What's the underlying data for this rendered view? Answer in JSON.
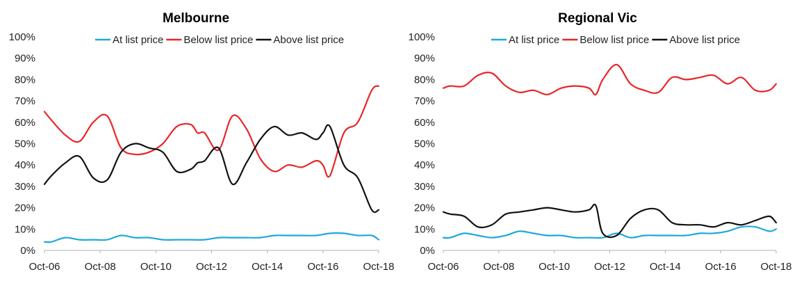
{
  "chart_data": [
    {
      "type": "line",
      "title": "Melbourne",
      "xlabel": "",
      "ylabel": "",
      "ylim": [
        0,
        100
      ],
      "yticks": [
        "0%",
        "10%",
        "20%",
        "30%",
        "40%",
        "50%",
        "60%",
        "70%",
        "80%",
        "90%",
        "100%"
      ],
      "x_tick_labels": [
        "Oct-06",
        "Oct-08",
        "Oct-10",
        "Oct-12",
        "Oct-14",
        "Oct-16",
        "Oct-18"
      ],
      "x_range": [
        2006.75,
        2018.75
      ],
      "legend_position": "top",
      "series": [
        {
          "name": "At list price",
          "color": "#1fa8dc",
          "x": [
            2006.75,
            2007.0,
            2007.5,
            2008.0,
            2008.5,
            2009.0,
            2009.5,
            2010.0,
            2010.5,
            2011.0,
            2011.5,
            2012.0,
            2012.5,
            2013.0,
            2013.5,
            2014.0,
            2014.5,
            2015.0,
            2015.5,
            2016.0,
            2016.5,
            2017.0,
            2017.5,
            2018.0,
            2018.5,
            2018.75
          ],
          "values": [
            4,
            4,
            6,
            5,
            5,
            5,
            7,
            6,
            6,
            5,
            5,
            5,
            5,
            6,
            6,
            6,
            6,
            7,
            7,
            7,
            7,
            8,
            8,
            7,
            7,
            5
          ]
        },
        {
          "name": "Below list price",
          "color": "#e8262a",
          "x": [
            2006.75,
            2007.0,
            2007.5,
            2008.0,
            2008.5,
            2009.0,
            2009.5,
            2010.0,
            2010.5,
            2011.0,
            2011.5,
            2012.0,
            2012.25,
            2012.5,
            2013.0,
            2013.5,
            2014.0,
            2014.5,
            2015.0,
            2015.5,
            2016.0,
            2016.5,
            2016.75,
            2017.0,
            2017.5,
            2018.0,
            2018.5,
            2018.75
          ],
          "values": [
            65,
            61,
            54,
            51,
            60,
            63,
            48,
            45,
            46,
            50,
            58,
            59,
            55,
            55,
            47,
            63,
            57,
            43,
            37,
            40,
            39,
            42,
            40,
            35,
            55,
            60,
            75,
            77
          ]
        },
        {
          "name": "Above list price",
          "color": "#111111",
          "x": [
            2006.75,
            2007.0,
            2007.5,
            2008.0,
            2008.5,
            2009.0,
            2009.5,
            2010.0,
            2010.5,
            2011.0,
            2011.5,
            2012.0,
            2012.25,
            2012.5,
            2013.0,
            2013.5,
            2014.0,
            2014.5,
            2015.0,
            2015.5,
            2016.0,
            2016.5,
            2016.75,
            2017.0,
            2017.5,
            2018.0,
            2018.5,
            2018.75
          ],
          "values": [
            31,
            35,
            41,
            44,
            34,
            33,
            46,
            50,
            48,
            46,
            37,
            38,
            41,
            42,
            48,
            31,
            41,
            52,
            58,
            54,
            55,
            52,
            55,
            58,
            40,
            34,
            19,
            19
          ]
        }
      ]
    },
    {
      "type": "line",
      "title": "Regional Vic",
      "xlabel": "",
      "ylabel": "",
      "ylim": [
        0,
        100
      ],
      "yticks": [
        "0%",
        "10%",
        "20%",
        "30%",
        "40%",
        "50%",
        "60%",
        "70%",
        "80%",
        "90%",
        "100%"
      ],
      "x_tick_labels": [
        "Oct-06",
        "Oct-08",
        "Oct-10",
        "Oct-12",
        "Oct-14",
        "Oct-16",
        "Oct-18"
      ],
      "x_range": [
        2006.75,
        2018.75
      ],
      "legend_position": "top",
      "series": [
        {
          "name": "At list price",
          "color": "#1fa8dc",
          "x": [
            2006.75,
            2007.0,
            2007.5,
            2008.0,
            2008.5,
            2009.0,
            2009.5,
            2010.0,
            2010.5,
            2011.0,
            2011.5,
            2012.0,
            2012.5,
            2013.0,
            2013.5,
            2014.0,
            2014.5,
            2015.0,
            2015.5,
            2016.0,
            2016.5,
            2017.0,
            2017.5,
            2018.0,
            2018.5,
            2018.75
          ],
          "values": [
            6,
            6,
            8,
            7,
            6,
            7,
            9,
            8,
            7,
            7,
            6,
            6,
            6,
            8,
            6,
            7,
            7,
            7,
            7,
            8,
            8,
            9,
            11,
            11,
            9,
            10
          ]
        },
        {
          "name": "Below list price",
          "color": "#e8262a",
          "x": [
            2006.75,
            2007.0,
            2007.5,
            2008.0,
            2008.5,
            2009.0,
            2009.5,
            2010.0,
            2010.5,
            2011.0,
            2011.5,
            2012.0,
            2012.25,
            2012.5,
            2013.0,
            2013.5,
            2014.0,
            2014.5,
            2015.0,
            2015.5,
            2016.0,
            2016.5,
            2017.0,
            2017.5,
            2018.0,
            2018.5,
            2018.75
          ],
          "values": [
            76,
            77,
            77,
            82,
            83,
            77,
            74,
            75,
            73,
            76,
            77,
            76,
            73,
            80,
            87,
            78,
            75,
            74,
            81,
            80,
            81,
            82,
            78,
            81,
            75,
            75,
            78
          ]
        },
        {
          "name": "Above list price",
          "color": "#111111",
          "x": [
            2006.75,
            2007.0,
            2007.5,
            2008.0,
            2008.5,
            2009.0,
            2009.5,
            2010.0,
            2010.5,
            2011.0,
            2011.5,
            2012.0,
            2012.25,
            2012.5,
            2013.0,
            2013.5,
            2014.0,
            2014.5,
            2015.0,
            2015.5,
            2016.0,
            2016.5,
            2017.0,
            2017.5,
            2018.0,
            2018.5,
            2018.75
          ],
          "values": [
            18,
            17,
            16,
            11,
            12,
            17,
            18,
            19,
            20,
            19,
            18,
            19,
            21,
            8,
            7,
            15,
            19,
            19,
            13,
            12,
            12,
            11,
            13,
            12,
            14,
            16,
            13
          ]
        }
      ]
    }
  ]
}
